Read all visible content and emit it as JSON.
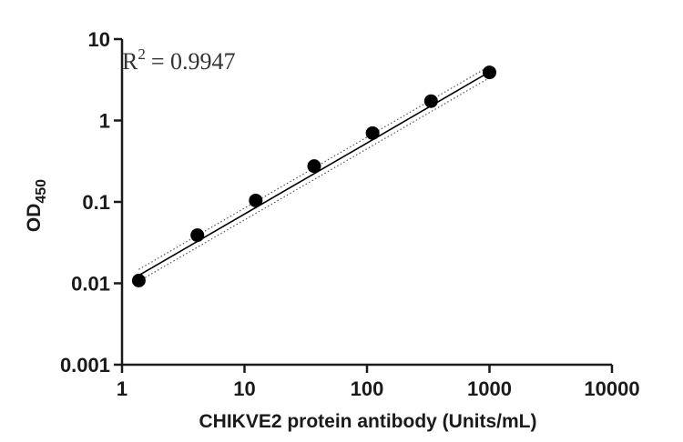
{
  "chart_data": {
    "type": "scatter",
    "xscale": "log",
    "yscale": "log",
    "xlim": [
      1,
      10000
    ],
    "ylim": [
      0.001,
      10
    ],
    "x_ticks": [
      {
        "value": 1,
        "label": "1"
      },
      {
        "value": 10,
        "label": "10"
      },
      {
        "value": 100,
        "label": "100"
      },
      {
        "value": 1000,
        "label": "1000"
      },
      {
        "value": 10000,
        "label": "10000"
      }
    ],
    "y_ticks": [
      {
        "value": 0.001,
        "label": "0.001"
      },
      {
        "value": 0.01,
        "label": "0.01"
      },
      {
        "value": 0.1,
        "label": "0.1"
      },
      {
        "value": 1,
        "label": "1"
      },
      {
        "value": 10,
        "label": "10"
      }
    ],
    "xlabel": "CHIKVE2 protein antibody (Units/mL)",
    "ylabel_main": "OD",
    "ylabel_sub": "450",
    "annotation": {
      "r_label": "R",
      "r_sup": "2",
      "r_value": "= 0.9947"
    },
    "grid": false,
    "points": [
      {
        "x": 1.37,
        "y": 0.0108
      },
      {
        "x": 4.12,
        "y": 0.039
      },
      {
        "x": 12.35,
        "y": 0.104
      },
      {
        "x": 37.04,
        "y": 0.275
      },
      {
        "x": 111.1,
        "y": 0.7
      },
      {
        "x": 333.3,
        "y": 1.73
      },
      {
        "x": 1000,
        "y": 3.9
      }
    ],
    "fit_line": {
      "x": [
        1.37,
        1000
      ],
      "y": [
        0.0125,
        3.95
      ]
    },
    "confidence_band": {
      "x": [
        1.37,
        1000
      ],
      "upper": [
        0.0148,
        4.65
      ],
      "lower": [
        0.0106,
        3.35
      ]
    },
    "colors": {
      "points": "#000000",
      "line": "#000000",
      "band": "#555555"
    }
  }
}
